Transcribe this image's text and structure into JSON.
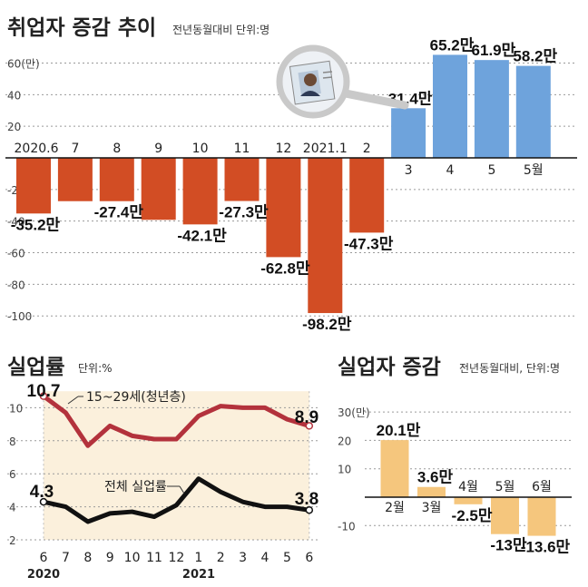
{
  "charts": {
    "employment": {
      "title": "취업자 증감 추이",
      "unit": "전년동월대비 단위:명"
    },
    "unemployment_rate": {
      "title": "실업률",
      "unit": "단위:%",
      "series_labels": [
        "15~29세(청년층)",
        "전체 실업률"
      ],
      "year_labels": [
        "2020",
        "2021"
      ]
    },
    "unemployed": {
      "title": "실업자 증감",
      "unit": "전년동월대비, 단위:명"
    }
  },
  "chart_data": [
    {
      "type": "bar",
      "title": "취업자 증감 추이",
      "unit_text": "전년동월대비 단위:명",
      "categories": [
        "2020.6",
        "7",
        "8",
        "9",
        "10",
        "11",
        "12",
        "2021.1",
        "2",
        "3",
        "4",
        "5",
        "5월"
      ],
      "values": [
        -35.2,
        -27.4,
        -27.4,
        -39.2,
        -42.1,
        -27.3,
        -62.8,
        -98.2,
        -47.3,
        31.4,
        65.2,
        61.9,
        58.2
      ],
      "value_labels": [
        "-35.2만",
        "",
        "-27.4만",
        "",
        "-42.1만",
        "-27.3만",
        "-62.8만",
        "-98.2만",
        "-47.3만",
        "31.4만",
        "65.2만",
        "61.9만",
        "58.2만"
      ],
      "yticks": [
        "60(만)",
        "40",
        "20",
        "-20",
        "-40",
        "-60",
        "-80",
        "-100"
      ],
      "ytick_values": [
        60,
        40,
        20,
        -20,
        -40,
        -60,
        -80,
        -100
      ],
      "ylim": [
        -100,
        60
      ],
      "colors": {
        "negative": "#d24d24",
        "positive": "#6ea3dc"
      }
    },
    {
      "type": "line",
      "title": "실업률",
      "unit_text": "단위:%",
      "x": [
        "6",
        "7",
        "8",
        "9",
        "10",
        "11",
        "12",
        "1",
        "2",
        "3",
        "4",
        "5",
        "6"
      ],
      "series": [
        {
          "name": "15~29세(청년층)",
          "values": [
            10.7,
            9.7,
            7.7,
            8.9,
            8.3,
            8.1,
            8.1,
            9.5,
            10.1,
            10.0,
            10.0,
            9.3,
            8.9
          ],
          "color": "#b3323c"
        },
        {
          "name": "전체 실업률",
          "values": [
            4.3,
            4.0,
            3.1,
            3.6,
            3.7,
            3.4,
            4.1,
            5.7,
            4.9,
            4.3,
            4.0,
            4.0,
            3.8
          ],
          "color": "#111111"
        }
      ],
      "end_labels": [
        "10.7",
        "8.9",
        "4.3",
        "3.8"
      ],
      "yticks": [
        "10",
        "8",
        "6",
        "4",
        "2"
      ],
      "ytick_values": [
        10,
        8,
        6,
        4,
        2
      ],
      "ylim": [
        2,
        11
      ],
      "fill_color": "#fbf0dc"
    },
    {
      "type": "bar",
      "title": "실업자 증감",
      "unit_text": "전년동월대비, 단위:명",
      "categories": [
        "2월",
        "3월",
        "4월",
        "5월",
        "6월"
      ],
      "values": [
        20.1,
        3.6,
        -2.5,
        -13,
        -13.6
      ],
      "value_labels": [
        "20.1만",
        "3.6만",
        "-2.5만",
        "-13만",
        "-13.6만"
      ],
      "yticks": [
        "30(만)",
        "20",
        "10",
        "-10"
      ],
      "ytick_values": [
        30,
        20,
        10,
        -10
      ],
      "ylim": [
        -15,
        30
      ],
      "color": "#f5c67d"
    }
  ]
}
